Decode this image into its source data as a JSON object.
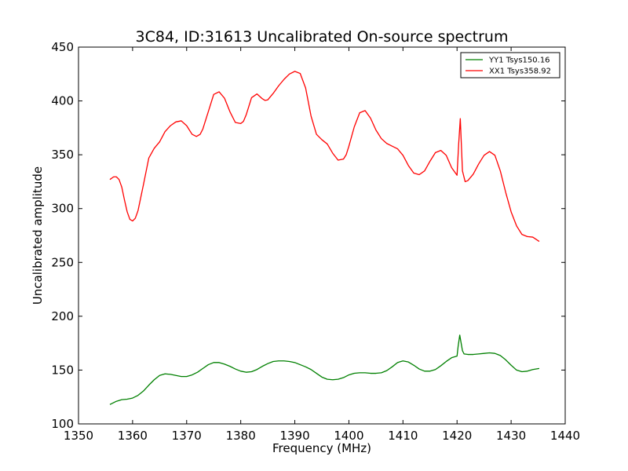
{
  "chart_data": {
    "type": "line",
    "title": "3C84, ID:31613 Uncalibrated On-source spectrum",
    "xlabel": "Frequency (MHz)",
    "ylabel": "Uncalibrated amplitude",
    "xlim": [
      1350,
      1440
    ],
    "ylim": [
      100,
      450
    ],
    "xticks": [
      "1350",
      "1360",
      "1370",
      "1380",
      "1390",
      "1400",
      "1410",
      "1420",
      "1430",
      "1440"
    ],
    "yticks": [
      "100",
      "150",
      "200",
      "250",
      "300",
      "350",
      "400",
      "450"
    ],
    "grid": false,
    "legend_position": "top-right",
    "series": [
      {
        "name": "YY1 Tsys150.16",
        "color": "#008000",
        "x": [
          1355.8,
          1357,
          1358,
          1359,
          1360,
          1361,
          1362,
          1363,
          1364,
          1365,
          1366,
          1367,
          1368,
          1369,
          1370,
          1371,
          1372,
          1373,
          1374,
          1375,
          1376,
          1377,
          1378,
          1379,
          1380,
          1381,
          1382,
          1383,
          1384,
          1385,
          1386,
          1387,
          1388,
          1389,
          1390,
          1391,
          1392,
          1393,
          1394,
          1395,
          1396,
          1397,
          1398,
          1399,
          1400,
          1401,
          1402,
          1403,
          1404,
          1405,
          1406,
          1407,
          1408,
          1409,
          1410,
          1411,
          1412,
          1413,
          1414,
          1415,
          1416,
          1417,
          1418,
          1419,
          1420,
          1420.2,
          1420.5,
          1421,
          1421.3,
          1422,
          1423,
          1424,
          1425,
          1426,
          1427,
          1428,
          1429,
          1430,
          1431,
          1432,
          1433,
          1434,
          1435.2
        ],
        "y": [
          118,
          121,
          122.5,
          123,
          124,
          126.5,
          130.5,
          136,
          141,
          145,
          146.5,
          146,
          145,
          144,
          144,
          145.5,
          148,
          151.5,
          155,
          157,
          157,
          155.5,
          153.5,
          151,
          149,
          148,
          148.5,
          150.5,
          153.5,
          156,
          158,
          158.5,
          158.5,
          158,
          157,
          155,
          153,
          150.5,
          147,
          143.5,
          141.5,
          141,
          141.5,
          143,
          145.5,
          147,
          147.5,
          147.5,
          147,
          147,
          147.5,
          149.5,
          153,
          157,
          158.5,
          157.5,
          154.5,
          151,
          149,
          149,
          150.5,
          154,
          158,
          161.5,
          163,
          172,
          182.5,
          168,
          165,
          164.5,
          164.5,
          165,
          165.5,
          166,
          165.5,
          163.5,
          159.5,
          154.5,
          150,
          148.5,
          149,
          150.5,
          151.5
        ]
      },
      {
        "name": "XX1 Tsys358.92",
        "color": "#ff0000",
        "x": [
          1355.8,
          1356.5,
          1357,
          1357.5,
          1358,
          1358.5,
          1359,
          1359.5,
          1360,
          1360.5,
          1361,
          1362,
          1363,
          1364,
          1365,
          1366,
          1367,
          1368,
          1369,
          1370,
          1371,
          1371.8,
          1372.5,
          1373,
          1374,
          1375,
          1376,
          1377,
          1378,
          1379,
          1380,
          1380.5,
          1381,
          1382,
          1383,
          1384,
          1384.5,
          1385,
          1386,
          1387,
          1388,
          1389,
          1390,
          1391,
          1392,
          1393,
          1394,
          1395,
          1396,
          1397,
          1398,
          1399,
          1399.5,
          1400,
          1401,
          1402,
          1403,
          1404,
          1405,
          1406,
          1407,
          1408,
          1409,
          1410,
          1411,
          1412,
          1413,
          1414,
          1415,
          1416,
          1417,
          1418,
          1419,
          1420,
          1420.3,
          1420.6,
          1421,
          1421.5,
          1422,
          1423,
          1424,
          1425,
          1426,
          1427,
          1428,
          1429,
          1430,
          1431,
          1432,
          1433,
          1434,
          1435.2
        ],
        "y": [
          327,
          329.5,
          329.5,
          327,
          320,
          308,
          297,
          290,
          288.5,
          291,
          298,
          322,
          347,
          356,
          362,
          371.5,
          377,
          380.5,
          381.5,
          377,
          369,
          367,
          369,
          374,
          390,
          406,
          408.5,
          402.5,
          390,
          380,
          379,
          381,
          387,
          403,
          406.5,
          402,
          400.5,
          401,
          407,
          414,
          420,
          425,
          427.5,
          425.5,
          412,
          386,
          369,
          364,
          360,
          351.5,
          345,
          346,
          350,
          358,
          376,
          389,
          391,
          384,
          373,
          365,
          360.5,
          358,
          355.5,
          349.5,
          340,
          333,
          331.5,
          335,
          344,
          352,
          354,
          349.5,
          338,
          331,
          360,
          383.5,
          335,
          325,
          326,
          332,
          341.5,
          349.5,
          353,
          349.5,
          335,
          315,
          297,
          284,
          276,
          274,
          273.5,
          269.5
        ]
      }
    ]
  }
}
